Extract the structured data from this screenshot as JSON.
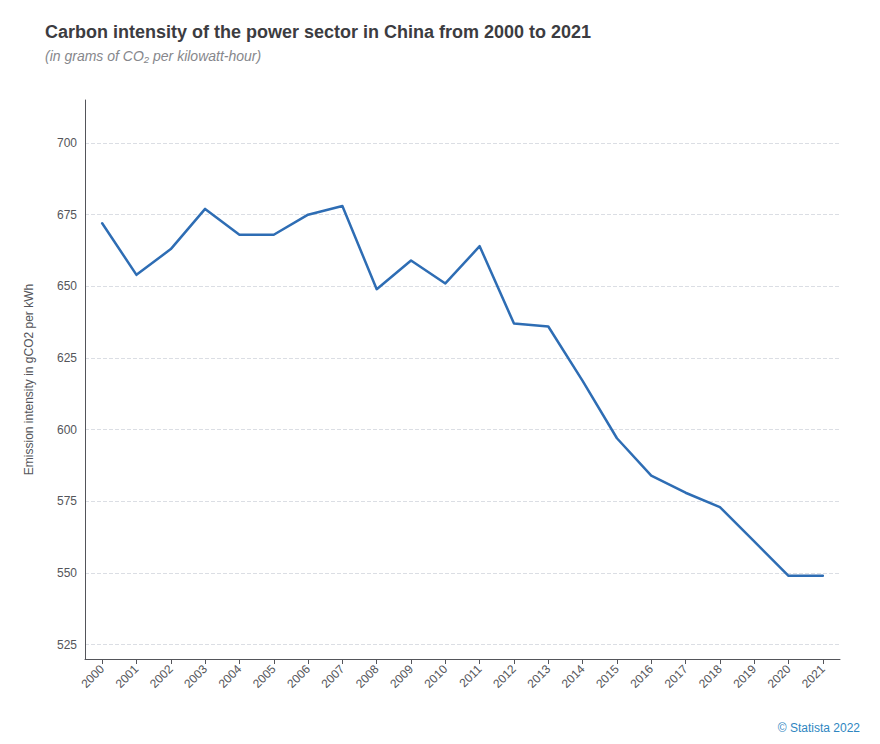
{
  "chart_data": {
    "type": "line",
    "title": "Carbon intensity of the power sector in China from 2000 to 2021",
    "subtitle": "(in grams of CO₂ per kilowatt-hour)",
    "ylabel": "Emission intensity in gCO2 per kWh",
    "annotations": [
      "© Statista 2022"
    ],
    "x": [
      2000,
      2001,
      2002,
      2003,
      2004,
      2005,
      2006,
      2007,
      2008,
      2009,
      2010,
      2011,
      2012,
      2013,
      2014,
      2015,
      2016,
      2017,
      2018,
      2019,
      2020,
      2021
    ],
    "values": [
      672,
      654,
      663,
      677,
      668,
      668,
      675,
      678,
      649,
      659,
      651,
      664,
      637,
      636,
      617,
      597,
      584,
      578,
      573,
      561,
      549,
      549
    ],
    "color": "#2e6db4",
    "xlim": [
      1999.5,
      2021.5
    ],
    "xticks": [
      2000,
      2001,
      2002,
      2003,
      2004,
      2005,
      2006,
      2007,
      2008,
      2009,
      2010,
      2011,
      2012,
      2013,
      2014,
      2015,
      2016,
      2017,
      2018,
      2019,
      2020,
      2021
    ],
    "ylim": [
      520,
      715
    ],
    "yticks": [
      525,
      550,
      575,
      600,
      625,
      650,
      675,
      700
    ],
    "grid": true
  }
}
